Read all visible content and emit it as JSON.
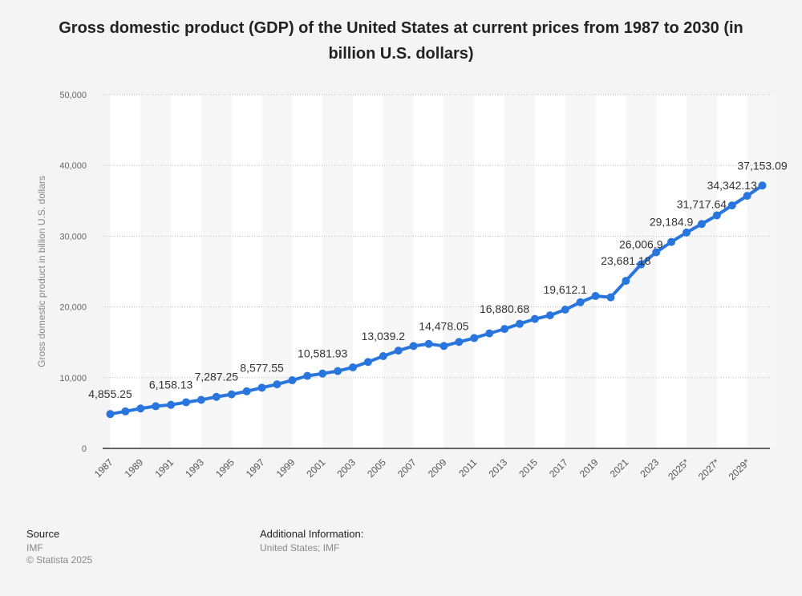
{
  "title": "Gross domestic product (GDP) of the United States at current prices from 1987 to 2030 (in billion U.S. dollars)",
  "footer": {
    "source_label": "Source",
    "source_value": "IMF",
    "copyright": "© Statista 2025",
    "additional_label": "Additional Information:",
    "additional_value": "United States; IMF"
  },
  "chart_data": {
    "type": "line",
    "title": "Gross domestic product (GDP) of the United States at current prices from 1987 to 2030 (in billion U.S. dollars)",
    "xlabel": "",
    "ylabel": "Gross domestic product in billion U.S. dollars",
    "ylim": [
      0,
      50000
    ],
    "yticks": [
      0,
      10000,
      20000,
      30000,
      40000,
      50000
    ],
    "ytick_labels": [
      "0",
      "10,000",
      "20,000",
      "30,000",
      "40,000",
      "50,000"
    ],
    "grid": true,
    "color": "#2876dd",
    "categories": [
      "1987",
      "1988",
      "1989",
      "1990",
      "1991",
      "1992",
      "1993",
      "1994",
      "1995",
      "1996",
      "1997",
      "1998",
      "1999",
      "2000",
      "2001",
      "2002",
      "2003",
      "2004",
      "2005",
      "2006",
      "2007",
      "2008",
      "2009",
      "2010",
      "2011",
      "2012",
      "2013",
      "2014",
      "2015",
      "2016",
      "2017",
      "2018",
      "2019",
      "2020",
      "2021",
      "2022",
      "2023",
      "2024",
      "2025*",
      "2026*",
      "2027*",
      "2028*",
      "2029*",
      "2030*"
    ],
    "xtick_labels": [
      "1987",
      "1989",
      "1991",
      "1993",
      "1995",
      "1997",
      "1999",
      "2001",
      "2003",
      "2005",
      "2007",
      "2009",
      "2011",
      "2013",
      "2015",
      "2017",
      "2019",
      "2021",
      "2023",
      "2025*",
      "2027*",
      "2029*"
    ],
    "values": [
      4855.25,
      5236.44,
      5641.58,
      5963.13,
      6158.13,
      6520.33,
      6858.55,
      7287.25,
      7639.75,
      8073.13,
      8577.55,
      9062.83,
      9631.18,
      10250.95,
      10581.93,
      10929.1,
      11456.45,
      12217.18,
      13039.2,
      13815.58,
      14474.23,
      14769.85,
      14478.05,
      15048.98,
      15599.73,
      16253.95,
      16880.68,
      17608.13,
      18295.0,
      18804.9,
      19612.1,
      20656.53,
      21539.98,
      21354.1,
      23681.18,
      26006.9,
      27720.73,
      29184.9,
      30507.2,
      31717.64,
      32940.0,
      34342.13,
      35700.0,
      37153.09
    ],
    "data_labels": [
      {
        "category": "1987",
        "text": "4,855.25"
      },
      {
        "category": "1991",
        "text": "6,158.13"
      },
      {
        "category": "1994",
        "text": "7,287.25"
      },
      {
        "category": "1997",
        "text": "8,577.55"
      },
      {
        "category": "2001",
        "text": "10,581.93"
      },
      {
        "category": "2005",
        "text": "13,039.2"
      },
      {
        "category": "2009",
        "text": "14,478.05"
      },
      {
        "category": "2013",
        "text": "16,880.68"
      },
      {
        "category": "2017",
        "text": "19,612.1"
      },
      {
        "category": "2021",
        "text": "23,681.18"
      },
      {
        "category": "2022",
        "text": "26,006.9"
      },
      {
        "category": "2024",
        "text": "29,184.9"
      },
      {
        "category": "2026*",
        "text": "31,717.64"
      },
      {
        "category": "2028*",
        "text": "34,342.13"
      },
      {
        "category": "2030*",
        "text": "37,153.09"
      }
    ]
  }
}
